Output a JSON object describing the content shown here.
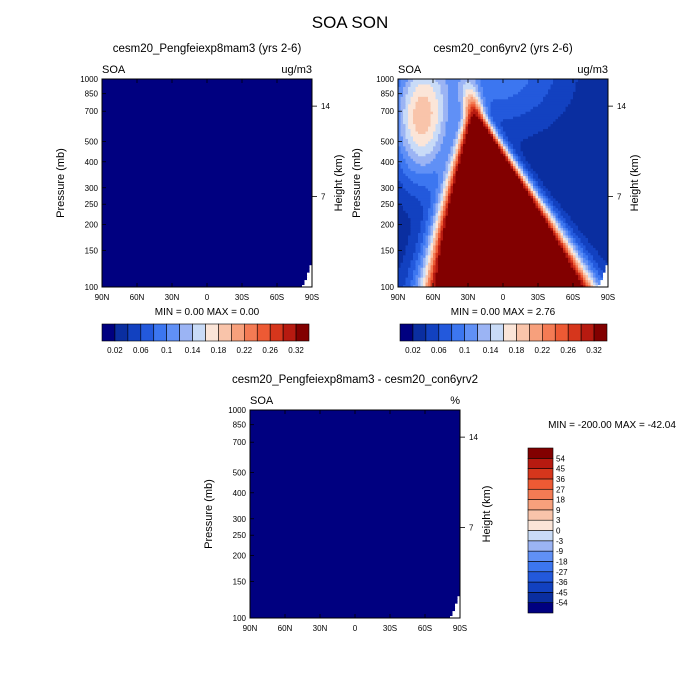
{
  "figure": {
    "title": "SOA SON"
  },
  "colors": {
    "abs_palette": [
      "#000080",
      "#0a2ea0",
      "#1241c0",
      "#2359dc",
      "#3c76f0",
      "#6090f6",
      "#9bb4f4",
      "#c9dbf7",
      "#fbe5d8",
      "#f9c4aa",
      "#f7a07c",
      "#f47b54",
      "#ed5a34",
      "#d6361c",
      "#b71a10",
      "#820000"
    ],
    "diff_palette": [
      "#000080",
      "#0a2ea0",
      "#1241c0",
      "#2359dc",
      "#3c76f0",
      "#6090f6",
      "#9bb4f4",
      "#c9dbf7",
      "#fbe5d8",
      "#f9c4aa",
      "#f7a07c",
      "#f47b54",
      "#ed5a34",
      "#d6361c",
      "#b71a10",
      "#820000"
    ],
    "missing": "#ffffff"
  },
  "chart_data": [
    {
      "type": "heatmap",
      "title": "cesm20_Pengfeiexp8mam3 (yrs 2-6)",
      "left_label": "SOA",
      "right_label": "ug/m3",
      "xlabel": "",
      "ylabel": "Pressure (mb)",
      "ylabel_right": "Height (km)",
      "xticks": [
        "90N",
        "60N",
        "30N",
        "0",
        "30S",
        "60S",
        "90S"
      ],
      "xlim": [
        90,
        -90
      ],
      "yticks": [
        "100",
        "150",
        "200",
        "250",
        "300",
        "400",
        "500",
        "700",
        "850",
        "1000"
      ],
      "ylim": [
        1000,
        100
      ],
      "yticks_right": [
        "14",
        "7"
      ],
      "stats": "MIN =   0.00  MAX =   0.00",
      "field": "zero",
      "colorbar": {
        "orientation": "horizontal",
        "labels": [
          "0.02",
          "0.06",
          "0.1",
          "0.14",
          "0.18",
          "0.22",
          "0.26",
          "0.32"
        ],
        "levels": [
          0.02,
          0.04,
          0.06,
          0.08,
          0.1,
          0.12,
          0.14,
          0.16,
          0.18,
          0.2,
          0.22,
          0.24,
          0.26,
          0.28,
          0.32
        ]
      }
    },
    {
      "type": "heatmap",
      "title": "cesm20_con6yrv2 (yrs 2-6)",
      "left_label": "SOA",
      "right_label": "ug/m3",
      "xlabel": "",
      "ylabel": "Pressure (mb)",
      "ylabel_right": "Height (km)",
      "xticks": [
        "90N",
        "60N",
        "30N",
        "0",
        "30S",
        "60S",
        "90S"
      ],
      "xlim": [
        90,
        -90
      ],
      "yticks": [
        "100",
        "150",
        "200",
        "250",
        "300",
        "400",
        "500",
        "700",
        "850",
        "1000"
      ],
      "ylim": [
        1000,
        100
      ],
      "yticks_right": [
        "14",
        "7"
      ],
      "stats": "MIN =   0.00  MAX =   2.76",
      "field": "soa",
      "colorbar": {
        "orientation": "horizontal",
        "labels": [
          "0.02",
          "0.06",
          "0.1",
          "0.14",
          "0.18",
          "0.22",
          "0.26",
          "0.32"
        ],
        "levels": [
          0.02,
          0.04,
          0.06,
          0.08,
          0.1,
          0.12,
          0.14,
          0.16,
          0.18,
          0.2,
          0.22,
          0.24,
          0.26,
          0.28,
          0.32
        ]
      }
    },
    {
      "type": "heatmap",
      "title": "cesm20_Pengfeiexp8mam3 - cesm20_con6yrv2",
      "left_label": "SOA",
      "right_label": "%",
      "xlabel": "",
      "ylabel": "Pressure (mb)",
      "ylabel_right": "Height (km)",
      "xticks": [
        "90N",
        "60N",
        "30N",
        "0",
        "30S",
        "60S",
        "90S"
      ],
      "xlim": [
        90,
        -90
      ],
      "yticks": [
        "100",
        "150",
        "200",
        "250",
        "300",
        "400",
        "500",
        "700",
        "850",
        "1000"
      ],
      "ylim": [
        1000,
        100
      ],
      "yticks_right": [
        "14",
        "7"
      ],
      "stats": "MIN = -200.00  MAX = -42.04",
      "field": "diff",
      "colorbar": {
        "orientation": "vertical",
        "labels": [
          "54",
          "45",
          "36",
          "27",
          "18",
          "9",
          "3",
          "0",
          "-3",
          "-9",
          "-18",
          "-27",
          "-36",
          "-45",
          "-54"
        ],
        "levels": [
          -54,
          -45,
          -36,
          -27,
          -18,
          -9,
          -3,
          0,
          3,
          9,
          18,
          27,
          36,
          45,
          54
        ]
      }
    }
  ]
}
